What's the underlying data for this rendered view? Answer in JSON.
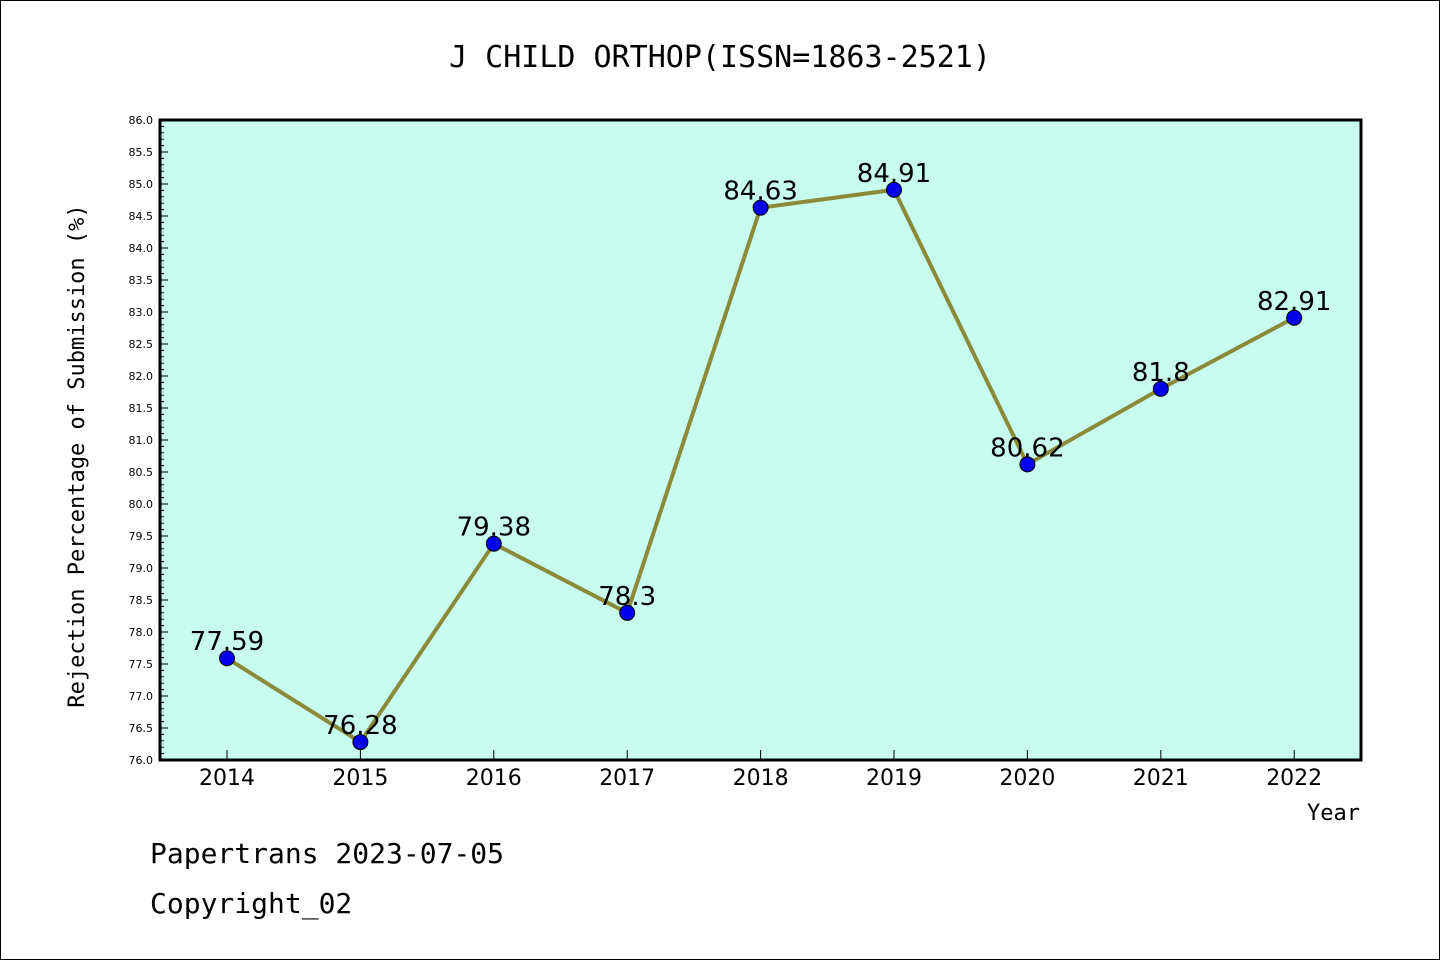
{
  "chart_data": {
    "type": "line",
    "title": "J CHILD ORTHOP(ISSN=1863-2521)",
    "xlabel": "Year",
    "ylabel": "Rejection Percentage of Submission (%)",
    "categories": [
      "2014",
      "2015",
      "2016",
      "2017",
      "2018",
      "2019",
      "2020",
      "2021",
      "2022"
    ],
    "values": [
      77.59,
      76.28,
      79.38,
      78.3,
      84.63,
      84.91,
      80.62,
      81.8,
      82.91
    ],
    "data_labels": [
      "77.59",
      "76.28",
      "79.38",
      "78.3",
      "84.63",
      "84.91",
      "80.62",
      "81.8",
      "82.91"
    ],
    "ylim": [
      76.0,
      86.0
    ],
    "yticks": [
      "76.0",
      "76.5",
      "77.0",
      "77.5",
      "78.0",
      "78.5",
      "79.0",
      "79.5",
      "80.0",
      "80.5",
      "81.0",
      "81.5",
      "82.0",
      "82.5",
      "83.0",
      "83.5",
      "84.0",
      "84.5",
      "85.0",
      "85.5",
      "86.0"
    ],
    "colors": {
      "plot_background": "#c8fcee",
      "line": "#8b8a3a",
      "marker": "#0000ee",
      "marker_edge": "#000000"
    },
    "grid": false,
    "legend": "none"
  },
  "footer": {
    "line1": "Papertrans 2023-07-05",
    "line2": "Copyright_02"
  }
}
